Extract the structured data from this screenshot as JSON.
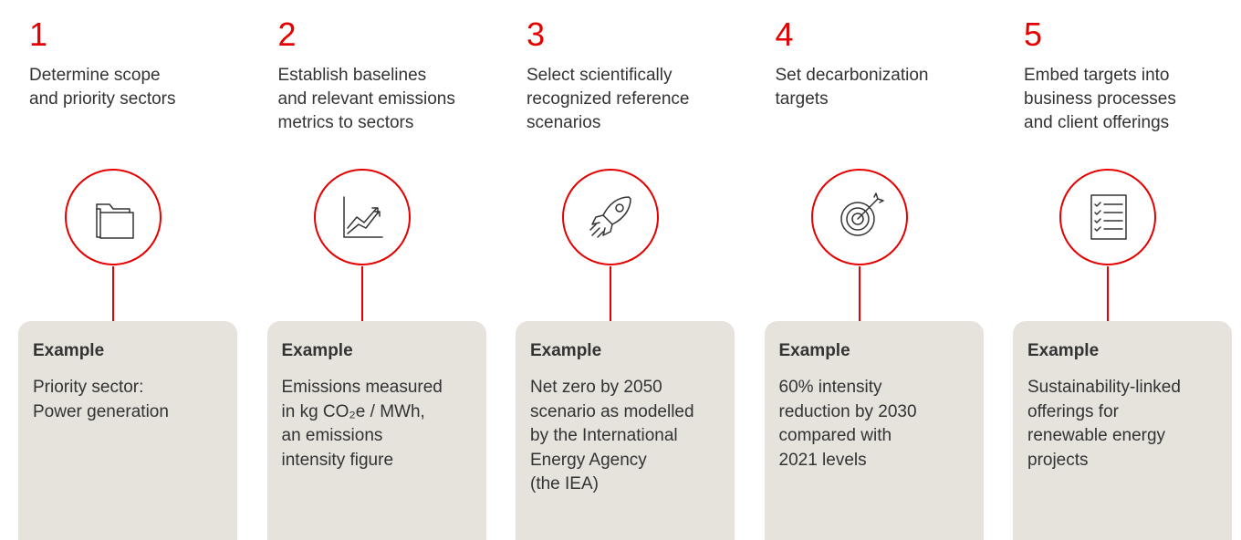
{
  "steps": [
    {
      "number": "1",
      "title_lines": [
        "Determine scope",
        "and priority sectors"
      ],
      "example_label": "Example",
      "example_lines": [
        "Priority sector:",
        "Power generation"
      ]
    },
    {
      "number": "2",
      "title_lines": [
        "Establish baselines",
        "and relevant emissions",
        "metrics to sectors"
      ],
      "example_label": "Example",
      "example_lines": [
        "Emissions measured",
        "in kg CO₂e / MWh,",
        "an emissions",
        "intensity figure"
      ]
    },
    {
      "number": "3",
      "title_lines": [
        "Select scientifically",
        "recognized reference",
        "scenarios"
      ],
      "example_label": "Example",
      "example_lines": [
        "Net zero by 2050",
        "scenario as modelled",
        "by the International",
        "Energy Agency",
        "(the IEA)"
      ]
    },
    {
      "number": "4",
      "title_lines": [
        "Set decarbonization",
        "targets"
      ],
      "example_label": "Example",
      "example_lines": [
        "60% intensity",
        "reduction by 2030",
        "compared with",
        "2021 levels"
      ]
    },
    {
      "number": "5",
      "title_lines": [
        "Embed targets into",
        "business processes",
        "and client offerings"
      ],
      "example_label": "Example",
      "example_lines": [
        "Sustainability-linked",
        "offerings for",
        "renewable energy",
        "projects"
      ]
    }
  ]
}
